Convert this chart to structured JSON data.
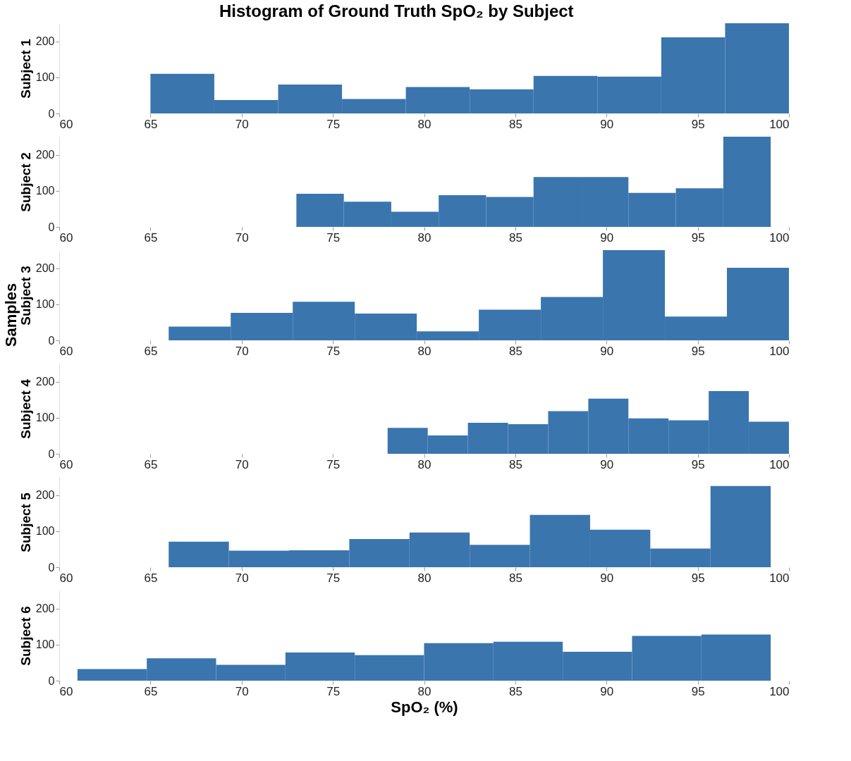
{
  "chart_data": [
    {
      "type": "histogram",
      "title": "Histogram of Ground Truth SpO₂ by Subject",
      "ylabel": "Subject 1",
      "annotations": [
        "Samples"
      ],
      "color": "#3a75ae",
      "bins": [
        65,
        68.5,
        72,
        75.5,
        79,
        82.5,
        86,
        89.5,
        93,
        96.5,
        100
      ],
      "values": [
        110,
        37,
        80,
        40,
        73,
        67,
        104,
        102,
        211,
        250
      ],
      "xlim": [
        60,
        100
      ],
      "xticks": [
        60,
        65,
        70,
        75,
        80,
        85,
        90,
        95,
        100
      ],
      "ylim": [
        0,
        250
      ],
      "yticks": [
        0,
        100,
        200
      ]
    },
    {
      "type": "histogram",
      "ylabel": "Subject 2",
      "color": "#3a75ae",
      "bins": [
        73,
        75.6,
        78.2,
        80.8,
        83.4,
        86,
        88.6,
        91.2,
        93.8,
        96.4,
        99
      ],
      "values": [
        92,
        70,
        42,
        88,
        83,
        138,
        138,
        94,
        107,
        250
      ],
      "xlim": [
        60,
        100
      ],
      "xticks": [
        60,
        65,
        70,
        75,
        80,
        85,
        90,
        95,
        100
      ],
      "ylim": [
        0,
        250
      ],
      "yticks": [
        0,
        100,
        200
      ]
    },
    {
      "type": "histogram",
      "ylabel": "Subject 3",
      "color": "#3a75ae",
      "bins": [
        66,
        69.4,
        72.8,
        76.2,
        79.6,
        83,
        86.4,
        89.8,
        93.2,
        96.6,
        100
      ],
      "values": [
        38,
        76,
        107,
        74,
        25,
        85,
        120,
        250,
        66,
        201
      ],
      "xlim": [
        60,
        100
      ],
      "xticks": [
        60,
        65,
        70,
        75,
        80,
        85,
        90,
        95,
        100
      ],
      "ylim": [
        0,
        250
      ],
      "yticks": [
        0,
        100,
        200
      ]
    },
    {
      "type": "histogram",
      "ylabel": "Subject 4",
      "color": "#3a75ae",
      "bins": [
        78,
        80.2,
        82.4,
        84.6,
        86.8,
        89,
        91.2,
        93.4,
        95.6,
        97.8,
        100
      ],
      "values": [
        72,
        51,
        86,
        82,
        118,
        153,
        98,
        93,
        174,
        89
      ],
      "xlim": [
        60,
        100
      ],
      "xticks": [
        60,
        65,
        70,
        75,
        80,
        85,
        90,
        95,
        100
      ],
      "ylim": [
        0,
        250
      ],
      "yticks": [
        0,
        100,
        200
      ]
    },
    {
      "type": "histogram",
      "ylabel": "Subject 5",
      "color": "#3a75ae",
      "bins": [
        66,
        69.3,
        72.6,
        75.9,
        79.2,
        82.5,
        85.8,
        89.1,
        92.4,
        95.7,
        99
      ],
      "values": [
        71,
        46,
        47,
        78,
        96,
        62,
        145,
        104,
        52,
        225
      ],
      "xlim": [
        60,
        100
      ],
      "xticks": [
        60,
        65,
        70,
        75,
        80,
        85,
        90,
        95,
        100
      ],
      "ylim": [
        0,
        250
      ],
      "yticks": [
        0,
        100,
        200
      ]
    },
    {
      "type": "histogram",
      "ylabel": "Subject 6",
      "xlabel": "SpO₂ (%)",
      "color": "#3a75ae",
      "bins": [
        61,
        64.8,
        68.6,
        72.4,
        76.2,
        80,
        83.8,
        87.6,
        91.4,
        95.2,
        99
      ],
      "values": [
        32,
        62,
        44,
        78,
        71,
        104,
        108,
        80,
        124,
        128
      ],
      "xlim": [
        60,
        100
      ],
      "xticks": [
        60,
        65,
        70,
        75,
        80,
        85,
        90,
        95,
        100
      ],
      "ylim": [
        0,
        250
      ],
      "yticks": [
        0,
        100,
        200
      ]
    }
  ]
}
